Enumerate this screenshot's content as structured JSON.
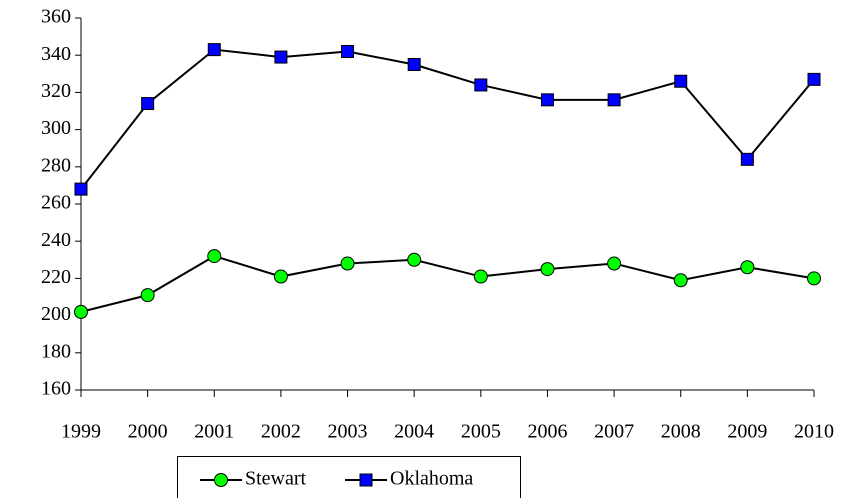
{
  "chart_data": {
    "type": "line",
    "x": [
      1999,
      2000,
      2001,
      2002,
      2003,
      2004,
      2005,
      2006,
      2007,
      2008,
      2009,
      2010
    ],
    "xlim": [
      1999,
      2010
    ],
    "xticks": [
      1999,
      2000,
      2001,
      2002,
      2003,
      2004,
      2005,
      2006,
      2007,
      2008,
      2009,
      2010
    ],
    "ylim": [
      160,
      360
    ],
    "yticks": [
      160,
      180,
      200,
      220,
      240,
      260,
      280,
      300,
      320,
      340,
      360
    ],
    "grid": false,
    "legend": "bottom",
    "series": [
      {
        "name": "Stewart",
        "color": "#00ff00",
        "marker": "circle",
        "values": [
          202,
          211,
          232,
          221,
          228,
          230,
          221,
          225,
          228,
          219,
          226,
          220
        ]
      },
      {
        "name": "Oklahoma",
        "color": "#0000ff",
        "marker": "square",
        "values": [
          268,
          314,
          343,
          339,
          342,
          335,
          324,
          316,
          316,
          326,
          284,
          327
        ]
      }
    ]
  }
}
